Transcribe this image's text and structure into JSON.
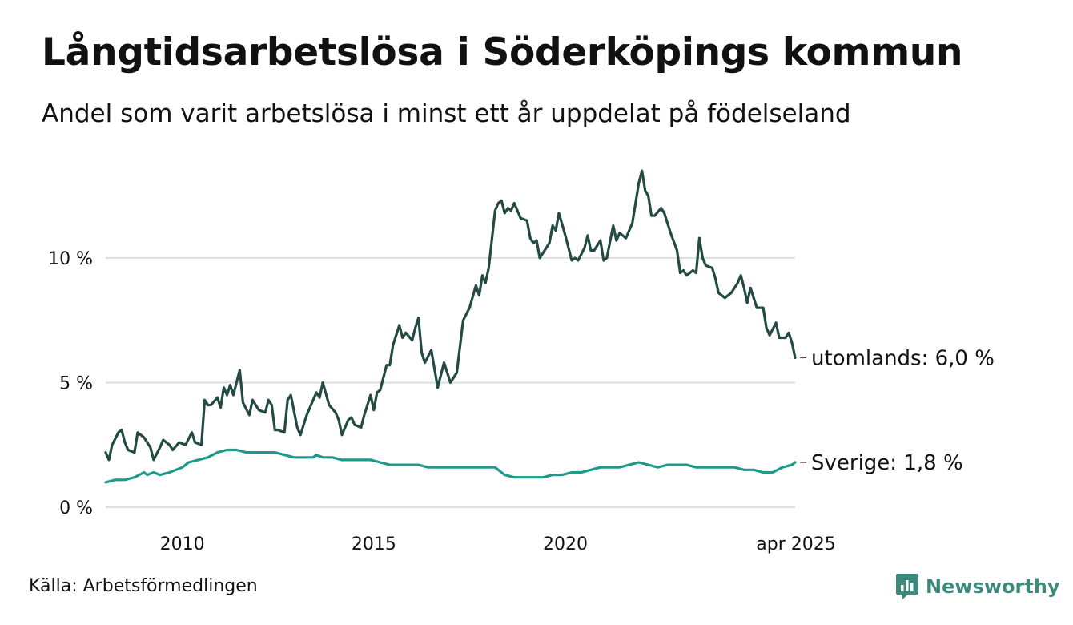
{
  "header": {
    "title": "Långtidsarbetslösa i Söderköpings kommun",
    "subtitle": "Andel som varit arbetslösa i minst ett år uppdelat på födelseland"
  },
  "footer": {
    "source": "Källa: Arbetsförmedlingen",
    "brand": "Newsworthy"
  },
  "colors": {
    "utomlands": "#234a43",
    "sverige": "#1f9a8a",
    "grid": "#dedede",
    "brand": "#3d8a7d"
  },
  "icons": {
    "brand_logo": "newsworthy-logo-icon"
  },
  "chart_data": {
    "type": "line",
    "title": "Långtidsarbetslösa i Söderköpings kommun",
    "subtitle": "Andel som varit arbetslösa i minst ett år uppdelat på födelseland",
    "x_axis": {
      "range": [
        "2008-01",
        "2025-04"
      ],
      "ticks": [
        {
          "x": "2010-01",
          "label": "2010"
        },
        {
          "x": "2015-01",
          "label": "2015"
        },
        {
          "x": "2020-01",
          "label": "2020"
        },
        {
          "x": "2025-04",
          "label": "apr 2025"
        }
      ]
    },
    "y_axis": {
      "range": [
        0,
        14
      ],
      "ticks": [
        {
          "value": 0,
          "label": "0 %"
        },
        {
          "value": 5,
          "label": "5 %"
        },
        {
          "value": 10,
          "label": "10 %"
        }
      ],
      "grid": true
    },
    "series": [
      {
        "name": "utomlands",
        "end_label": "utomlands: 6,0 %",
        "color": "#234a43",
        "points": [
          [
            "2008-01",
            2.2
          ],
          [
            "2008-02",
            1.9
          ],
          [
            "2008-03",
            2.5
          ],
          [
            "2008-05",
            3.0
          ],
          [
            "2008-06",
            3.1
          ],
          [
            "2008-07",
            2.6
          ],
          [
            "2008-08",
            2.3
          ],
          [
            "2008-10",
            2.2
          ],
          [
            "2008-11",
            3.0
          ],
          [
            "2009-01",
            2.8
          ],
          [
            "2009-03",
            2.4
          ],
          [
            "2009-04",
            1.9
          ],
          [
            "2009-06",
            2.4
          ],
          [
            "2009-07",
            2.7
          ],
          [
            "2009-09",
            2.5
          ],
          [
            "2009-10",
            2.3
          ],
          [
            "2009-12",
            2.6
          ],
          [
            "2010-02",
            2.5
          ],
          [
            "2010-04",
            3.0
          ],
          [
            "2010-05",
            2.6
          ],
          [
            "2010-07",
            2.5
          ],
          [
            "2010-08",
            4.3
          ],
          [
            "2010-09",
            4.1
          ],
          [
            "2010-10",
            4.1
          ],
          [
            "2010-12",
            4.4
          ],
          [
            "2011-01",
            4.0
          ],
          [
            "2011-02",
            4.8
          ],
          [
            "2011-03",
            4.5
          ],
          [
            "2011-04",
            4.9
          ],
          [
            "2011-05",
            4.5
          ],
          [
            "2011-07",
            5.5
          ],
          [
            "2011-08",
            4.2
          ],
          [
            "2011-10",
            3.7
          ],
          [
            "2011-11",
            4.3
          ],
          [
            "2012-01",
            3.9
          ],
          [
            "2012-03",
            3.8
          ],
          [
            "2012-04",
            4.3
          ],
          [
            "2012-05",
            4.1
          ],
          [
            "2012-06",
            3.1
          ],
          [
            "2012-07",
            3.1
          ],
          [
            "2012-09",
            3.0
          ],
          [
            "2012-10",
            4.3
          ],
          [
            "2012-11",
            4.5
          ],
          [
            "2013-01",
            3.2
          ],
          [
            "2013-02",
            2.9
          ],
          [
            "2013-04",
            3.7
          ],
          [
            "2013-05",
            4.0
          ],
          [
            "2013-07",
            4.6
          ],
          [
            "2013-08",
            4.4
          ],
          [
            "2013-09",
            5.0
          ],
          [
            "2013-11",
            4.1
          ],
          [
            "2014-01",
            3.8
          ],
          [
            "2014-02",
            3.5
          ],
          [
            "2014-03",
            2.9
          ],
          [
            "2014-05",
            3.5
          ],
          [
            "2014-06",
            3.6
          ],
          [
            "2014-07",
            3.3
          ],
          [
            "2014-09",
            3.2
          ],
          [
            "2014-10",
            3.7
          ],
          [
            "2014-12",
            4.5
          ],
          [
            "2015-01",
            3.9
          ],
          [
            "2015-02",
            4.6
          ],
          [
            "2015-03",
            4.7
          ],
          [
            "2015-05",
            5.7
          ],
          [
            "2015-06",
            5.7
          ],
          [
            "2015-07",
            6.5
          ],
          [
            "2015-09",
            7.3
          ],
          [
            "2015-10",
            6.8
          ],
          [
            "2015-11",
            7.0
          ],
          [
            "2016-01",
            6.7
          ],
          [
            "2016-02",
            7.2
          ],
          [
            "2016-03",
            7.6
          ],
          [
            "2016-04",
            6.2
          ],
          [
            "2016-05",
            5.8
          ],
          [
            "2016-07",
            6.3
          ],
          [
            "2016-09",
            4.8
          ],
          [
            "2016-11",
            5.8
          ],
          [
            "2017-01",
            5.0
          ],
          [
            "2017-03",
            5.4
          ],
          [
            "2017-05",
            7.5
          ],
          [
            "2017-07",
            8.0
          ],
          [
            "2017-09",
            8.9
          ],
          [
            "2017-10",
            8.5
          ],
          [
            "2017-11",
            9.3
          ],
          [
            "2017-12",
            9.0
          ],
          [
            "2018-01",
            9.6
          ],
          [
            "2018-03",
            11.9
          ],
          [
            "2018-04",
            12.2
          ],
          [
            "2018-05",
            12.3
          ],
          [
            "2018-06",
            11.8
          ],
          [
            "2018-07",
            12.0
          ],
          [
            "2018-08",
            11.9
          ],
          [
            "2018-09",
            12.2
          ],
          [
            "2018-11",
            11.6
          ],
          [
            "2019-01",
            11.5
          ],
          [
            "2019-02",
            10.8
          ],
          [
            "2019-03",
            10.6
          ],
          [
            "2019-04",
            10.7
          ],
          [
            "2019-05",
            10.0
          ],
          [
            "2019-06",
            10.2
          ],
          [
            "2019-08",
            10.6
          ],
          [
            "2019-09",
            11.3
          ],
          [
            "2019-10",
            11.1
          ],
          [
            "2019-11",
            11.8
          ],
          [
            "2020-01",
            10.9
          ],
          [
            "2020-03",
            9.9
          ],
          [
            "2020-04",
            10.0
          ],
          [
            "2020-05",
            9.9
          ],
          [
            "2020-07",
            10.4
          ],
          [
            "2020-08",
            10.9
          ],
          [
            "2020-09",
            10.3
          ],
          [
            "2020-10",
            10.3
          ],
          [
            "2020-12",
            10.7
          ],
          [
            "2021-01",
            9.9
          ],
          [
            "2021-02",
            10.0
          ],
          [
            "2021-04",
            11.3
          ],
          [
            "2021-05",
            10.7
          ],
          [
            "2021-06",
            11.0
          ],
          [
            "2021-08",
            10.8
          ],
          [
            "2021-10",
            11.4
          ],
          [
            "2021-12",
            13.0
          ],
          [
            "2022-01",
            13.5
          ],
          [
            "2022-02",
            12.7
          ],
          [
            "2022-03",
            12.5
          ],
          [
            "2022-04",
            11.7
          ],
          [
            "2022-05",
            11.7
          ],
          [
            "2022-07",
            12.0
          ],
          [
            "2022-08",
            11.8
          ],
          [
            "2022-10",
            11.0
          ],
          [
            "2022-12",
            10.3
          ],
          [
            "2023-01",
            9.4
          ],
          [
            "2023-02",
            9.5
          ],
          [
            "2023-03",
            9.3
          ],
          [
            "2023-05",
            9.5
          ],
          [
            "2023-06",
            9.4
          ],
          [
            "2023-07",
            10.8
          ],
          [
            "2023-08",
            10.0
          ],
          [
            "2023-09",
            9.7
          ],
          [
            "2023-11",
            9.6
          ],
          [
            "2023-12",
            9.2
          ],
          [
            "2024-01",
            8.6
          ],
          [
            "2024-03",
            8.4
          ],
          [
            "2024-05",
            8.6
          ],
          [
            "2024-07",
            9.0
          ],
          [
            "2024-08",
            9.3
          ],
          [
            "2024-09",
            8.8
          ],
          [
            "2024-10",
            8.2
          ],
          [
            "2024-11",
            8.8
          ],
          [
            "2024-12",
            8.4
          ],
          [
            "2025-01",
            8.0
          ],
          [
            "2025-03",
            8.0
          ],
          [
            "2025-04",
            7.2
          ],
          [
            "2025-05",
            6.9
          ],
          [
            "2025-07",
            7.4
          ],
          [
            "2025-08",
            6.8
          ],
          [
            "2025-10",
            6.8
          ],
          [
            "2025-11",
            7.0
          ],
          [
            "2025-12",
            6.6
          ],
          [
            "2026-01",
            6.0
          ]
        ]
      },
      {
        "name": "Sverige",
        "end_label": "Sverige: 1,8 %",
        "color": "#1f9a8a",
        "points": [
          [
            "2008-01",
            1.0
          ],
          [
            "2008-04",
            1.1
          ],
          [
            "2008-07",
            1.1
          ],
          [
            "2008-10",
            1.2
          ],
          [
            "2009-01",
            1.4
          ],
          [
            "2009-02",
            1.3
          ],
          [
            "2009-04",
            1.4
          ],
          [
            "2009-06",
            1.3
          ],
          [
            "2009-09",
            1.4
          ],
          [
            "2009-11",
            1.5
          ],
          [
            "2010-01",
            1.6
          ],
          [
            "2010-03",
            1.8
          ],
          [
            "2010-06",
            1.9
          ],
          [
            "2010-09",
            2.0
          ],
          [
            "2010-12",
            2.2
          ],
          [
            "2011-03",
            2.3
          ],
          [
            "2011-06",
            2.3
          ],
          [
            "2011-09",
            2.2
          ],
          [
            "2011-12",
            2.2
          ],
          [
            "2012-03",
            2.2
          ],
          [
            "2012-06",
            2.2
          ],
          [
            "2012-09",
            2.1
          ],
          [
            "2012-12",
            2.0
          ],
          [
            "2013-03",
            2.0
          ],
          [
            "2013-06",
            2.0
          ],
          [
            "2013-07",
            2.1
          ],
          [
            "2013-09",
            2.0
          ],
          [
            "2013-12",
            2.0
          ],
          [
            "2014-03",
            1.9
          ],
          [
            "2014-06",
            1.9
          ],
          [
            "2014-09",
            1.9
          ],
          [
            "2014-12",
            1.9
          ],
          [
            "2015-03",
            1.8
          ],
          [
            "2015-06",
            1.7
          ],
          [
            "2015-09",
            1.7
          ],
          [
            "2015-12",
            1.7
          ],
          [
            "2016-03",
            1.7
          ],
          [
            "2016-06",
            1.6
          ],
          [
            "2016-09",
            1.6
          ],
          [
            "2016-12",
            1.6
          ],
          [
            "2017-03",
            1.6
          ],
          [
            "2017-06",
            1.6
          ],
          [
            "2017-09",
            1.6
          ],
          [
            "2017-12",
            1.6
          ],
          [
            "2018-03",
            1.6
          ],
          [
            "2018-06",
            1.3
          ],
          [
            "2018-09",
            1.2
          ],
          [
            "2018-12",
            1.2
          ],
          [
            "2019-03",
            1.2
          ],
          [
            "2019-06",
            1.2
          ],
          [
            "2019-09",
            1.3
          ],
          [
            "2019-12",
            1.3
          ],
          [
            "2020-03",
            1.4
          ],
          [
            "2020-06",
            1.4
          ],
          [
            "2020-09",
            1.5
          ],
          [
            "2020-12",
            1.6
          ],
          [
            "2021-03",
            1.6
          ],
          [
            "2021-06",
            1.6
          ],
          [
            "2021-09",
            1.7
          ],
          [
            "2021-12",
            1.8
          ],
          [
            "2022-03",
            1.7
          ],
          [
            "2022-06",
            1.6
          ],
          [
            "2022-09",
            1.7
          ],
          [
            "2022-12",
            1.7
          ],
          [
            "2023-03",
            1.7
          ],
          [
            "2023-06",
            1.6
          ],
          [
            "2023-09",
            1.6
          ],
          [
            "2023-12",
            1.6
          ],
          [
            "2024-03",
            1.6
          ],
          [
            "2024-06",
            1.6
          ],
          [
            "2024-09",
            1.5
          ],
          [
            "2024-12",
            1.5
          ],
          [
            "2025-03",
            1.4
          ],
          [
            "2025-06",
            1.4
          ],
          [
            "2025-09",
            1.6
          ],
          [
            "2025-12",
            1.7
          ],
          [
            "2026-01",
            1.8
          ]
        ]
      }
    ]
  }
}
